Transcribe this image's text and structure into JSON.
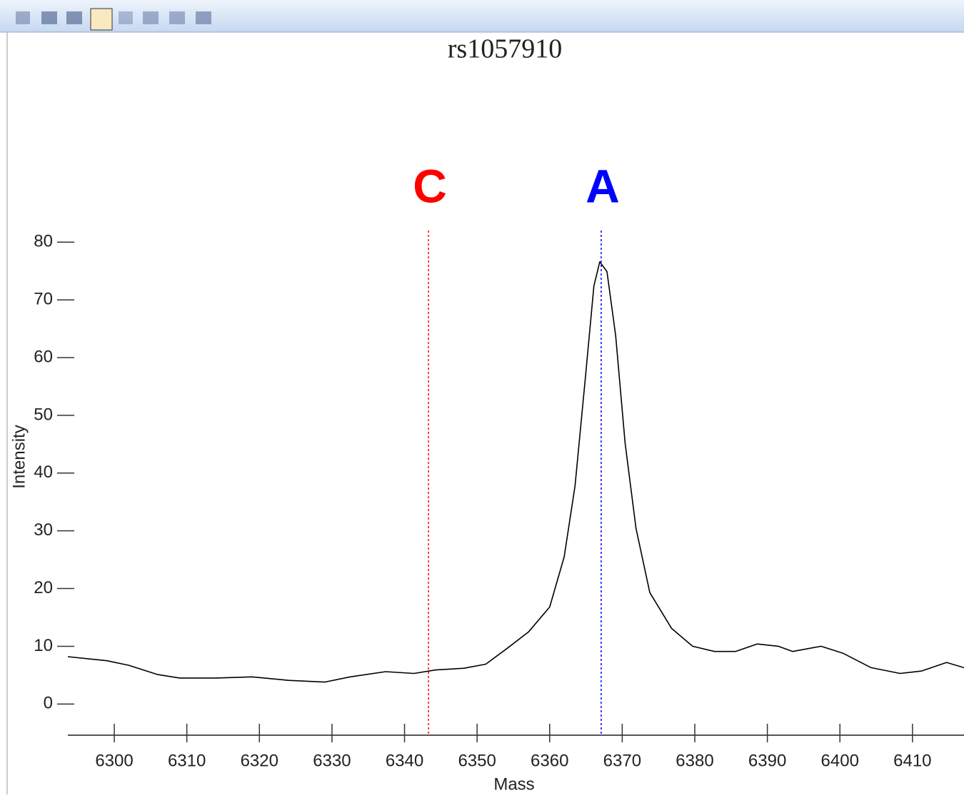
{
  "chart_data": {
    "type": "line",
    "title": "rs1057910",
    "xlabel": "Mass",
    "ylabel": "Intensity",
    "x": [
      6293.6,
      6299,
      6302,
      6306,
      6309,
      6314,
      6319,
      6324,
      6329,
      6332.5,
      6337.4,
      6341.3,
      6344.3,
      6348.2,
      6351.2,
      6354.1,
      6357.1,
      6360,
      6362,
      6363.5,
      6365,
      6366.1,
      6366.9,
      6367.9,
      6369.1,
      6370.4,
      6371.9,
      6373.8,
      6376.8,
      6379.7,
      6382.7,
      6385.6,
      6388.6,
      6391.5,
      6393.5,
      6397.4,
      6400.4,
      6404.3,
      6408.3,
      6411.2,
      6414.7,
      6417.1
    ],
    "series": [
      {
        "color": "#000000",
        "values": [
          8.2,
          7.5,
          6.7,
          5.1,
          4.5,
          4.5,
          4.7,
          4.1,
          3.8,
          4.7,
          5.6,
          5.3,
          5.9,
          6.2,
          6.9,
          9.6,
          12.5,
          16.8,
          25.5,
          37.8,
          57.6,
          72.4,
          76.6,
          74.9,
          63.8,
          45.2,
          30.4,
          19.3,
          13.1,
          10,
          9.1,
          9.1,
          10.4,
          10,
          9.1,
          10,
          8.8,
          6.3,
          5.3,
          5.7,
          7.2,
          6.3
        ]
      }
    ],
    "markers": [
      {
        "label": "C",
        "x": 6343.3,
        "color": "#ff0000"
      },
      {
        "label": "A",
        "x": 6367.1,
        "color": "#0000ff"
      }
    ],
    "xlim": [
      6293.6,
      6417.1
    ],
    "xticks": [
      6300,
      6310,
      6320,
      6330,
      6340,
      6350,
      6360,
      6370,
      6380,
      6390,
      6400,
      6410
    ],
    "ylim": [
      -5.4,
      89.8
    ],
    "yticks": [
      0,
      10,
      20,
      30,
      40,
      50,
      60,
      70,
      80
    ]
  }
}
